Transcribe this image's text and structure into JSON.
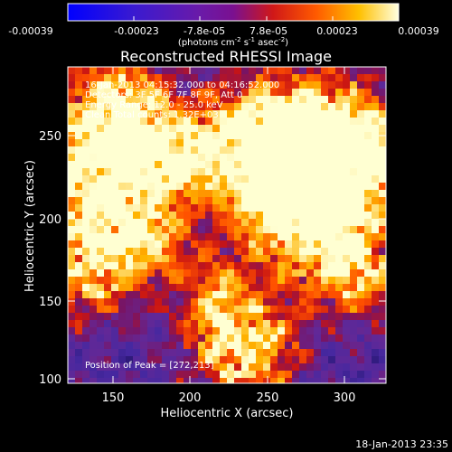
{
  "colorbar": {
    "ticks": [
      "-0.00039",
      "-0.00023",
      "-7.8e-05",
      "7.8e-05",
      "0.00023",
      "0.00039"
    ],
    "unit_label": "(photons cm",
    "unit_exp1": "-2",
    "unit_mid": " s",
    "unit_exp2": "-1",
    "unit_mid2": " asec",
    "unit_exp3": "-2",
    "unit_end": ")"
  },
  "title": "Reconstructed RHESSI Image",
  "annotations": {
    "time_range": "16-Jan-2013 04:15:32.000 to 04:16:52.000",
    "detectors": "Detectors: 3F 5F 6F 7F 8F 9F, Att 0",
    "energy": "Energy Range: 12.0 - 25.0 keV",
    "clean": "Clean     Total counts: 1.32E+03",
    "peak": "Position of Peak = [272,213]"
  },
  "axes": {
    "xlabel": "Heliocentric X (arcsec)",
    "ylabel": "Heliocentric Y (arcsec)",
    "xticks": [
      "150",
      "200",
      "250",
      "300"
    ],
    "yticks": [
      "100",
      "150",
      "200",
      "250"
    ]
  },
  "timestamp": "18-Jan-2013 23:35",
  "colors": {
    "background": "#000000",
    "frame": "#ffffff"
  }
}
